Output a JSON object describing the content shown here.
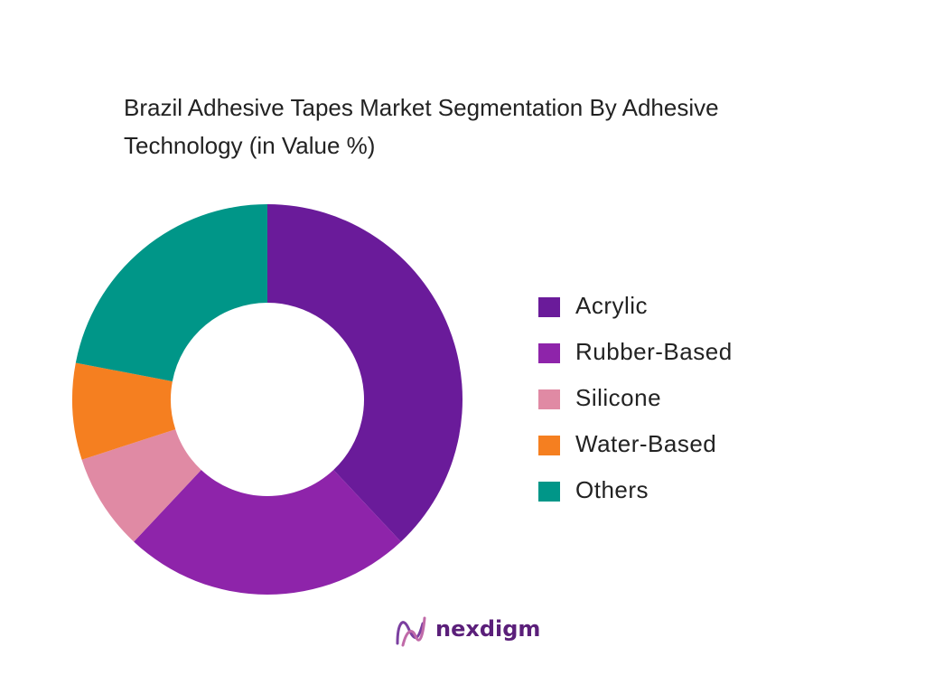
{
  "chart_data": {
    "type": "donut",
    "title": "Brazil Adhesive Tapes Market Segmentation By Adhesive Technology  (in Value %)",
    "categories": [
      "Acrylic",
      "Rubber-Based",
      "Silicone",
      "Water-Based",
      "Others"
    ],
    "values": [
      38,
      24,
      8,
      8,
      22
    ],
    "colors": [
      "#6a1b9a",
      "#8e24aa",
      "#e08aa4",
      "#f57f20",
      "#009688"
    ],
    "legend": "right"
  },
  "logo": {
    "text": "nexdigm"
  }
}
